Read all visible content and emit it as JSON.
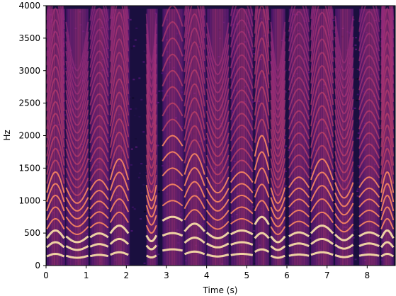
{
  "chart_data": {
    "type": "heatmap",
    "subtype": "spectrogram",
    "colormap": "magma",
    "title": "",
    "xlabel": "Time (s)",
    "ylabel": "Hz",
    "xlim": [
      0,
      8.7
    ],
    "ylim": [
      0,
      4000
    ],
    "grid": false,
    "legend": "none",
    "x_ticks": [
      "0",
      "1",
      "2",
      "3",
      "4",
      "5",
      "6",
      "7",
      "8"
    ],
    "y_ticks": [
      "0",
      "500",
      "1000",
      "1500",
      "2000",
      "2500",
      "3000",
      "3500",
      "4000"
    ],
    "voiced_segments": [
      {
        "start": 0.02,
        "end": 0.45,
        "f0": 140
      },
      {
        "start": 0.5,
        "end": 1.05,
        "f0": 150
      },
      {
        "start": 1.1,
        "end": 1.55,
        "f0": 145
      },
      {
        "start": 1.6,
        "end": 2.05,
        "f0": 165
      },
      {
        "start": 2.5,
        "end": 2.75,
        "f0": 155
      },
      {
        "start": 2.9,
        "end": 3.4,
        "f0": 230
      },
      {
        "start": 3.45,
        "end": 3.95,
        "f0": 175
      },
      {
        "start": 4.0,
        "end": 4.55,
        "f0": 170
      },
      {
        "start": 4.6,
        "end": 5.15,
        "f0": 160
      },
      {
        "start": 5.2,
        "end": 5.55,
        "f0": 210
      },
      {
        "start": 5.6,
        "end": 5.95,
        "f0": 150
      },
      {
        "start": 6.05,
        "end": 6.55,
        "f0": 150
      },
      {
        "start": 6.6,
        "end": 7.15,
        "f0": 165
      },
      {
        "start": 7.2,
        "end": 7.65,
        "f0": 160
      },
      {
        "start": 7.8,
        "end": 8.3,
        "f0": 150
      },
      {
        "start": 8.35,
        "end": 8.65,
        "f0": 140
      }
    ],
    "colors": {
      "background": "#0d0630",
      "low": "#3b0f70",
      "mid": "#b73779",
      "high": "#fcfdbf"
    }
  }
}
